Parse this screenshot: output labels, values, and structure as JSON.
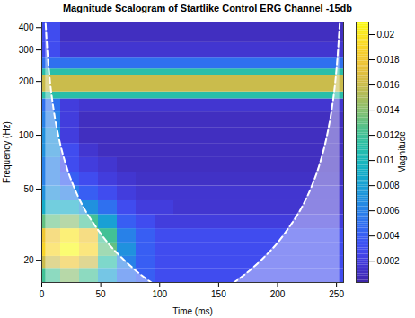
{
  "chart_data": {
    "type": "heatmap",
    "title": "Magnitude Scalogram of Startlike Control ERG Channel -15db",
    "x_label": "Time (ms)",
    "y_label": "Frequency (Hz)",
    "log": "y",
    "xlim": [
      0,
      256
    ],
    "ylim": [
      15,
      430
    ],
    "xticks": [
      0,
      50,
      100,
      150,
      200,
      250
    ],
    "yticks": [
      20,
      50,
      100,
      200,
      300,
      400
    ],
    "x_edges": [
      0,
      16,
      32,
      48,
      64,
      80,
      96,
      112,
      128,
      144,
      160,
      176,
      192,
      208,
      224,
      240,
      256
    ],
    "y_edges": [
      15,
      18,
      21,
      25,
      30,
      36,
      43,
      52,
      62,
      75,
      90,
      110,
      135,
      160,
      175,
      215,
      235,
      270,
      330,
      430
    ],
    "values": [
      [
        0.012,
        0.014,
        0.012,
        0.008,
        0.005,
        0.004,
        0.003,
        0.003,
        0.003,
        0.003,
        0.003,
        0.003,
        0.003,
        0.003,
        0.003,
        0.003
      ],
      [
        0.016,
        0.018,
        0.016,
        0.011,
        0.006,
        0.004,
        0.003,
        0.003,
        0.003,
        0.003,
        0.003,
        0.003,
        0.003,
        0.003,
        0.003,
        0.003
      ],
      [
        0.019,
        0.021,
        0.019,
        0.013,
        0.007,
        0.004,
        0.003,
        0.003,
        0.003,
        0.003,
        0.003,
        0.003,
        0.003,
        0.003,
        0.003,
        0.003
      ],
      [
        0.018,
        0.02,
        0.018,
        0.012,
        0.006,
        0.004,
        0.003,
        0.003,
        0.003,
        0.003,
        0.003,
        0.003,
        0.003,
        0.003,
        0.003,
        0.003
      ],
      [
        0.013,
        0.014,
        0.012,
        0.008,
        0.004,
        0.003,
        0.002,
        0.002,
        0.002,
        0.002,
        0.002,
        0.002,
        0.002,
        0.002,
        0.002,
        0.002
      ],
      [
        0.009,
        0.009,
        0.007,
        0.005,
        0.003,
        0.002,
        0.002,
        0.0015,
        0.0015,
        0.0015,
        0.0015,
        0.0015,
        0.0015,
        0.0015,
        0.0015,
        0.0015
      ],
      [
        0.007,
        0.006,
        0.004,
        0.003,
        0.002,
        0.0015,
        0.0015,
        0.0015,
        0.0015,
        0.0015,
        0.0015,
        0.0015,
        0.0015,
        0.0015,
        0.0015,
        0.0015
      ],
      [
        0.006,
        0.004,
        0.003,
        0.002,
        0.0015,
        0.0012,
        0.0012,
        0.0012,
        0.0012,
        0.0012,
        0.0012,
        0.0012,
        0.0012,
        0.0012,
        0.0012,
        0.0012
      ],
      [
        0.006,
        0.003,
        0.002,
        0.0015,
        0.001,
        0.001,
        0.001,
        0.001,
        0.001,
        0.001,
        0.001,
        0.001,
        0.001,
        0.001,
        0.001,
        0.001
      ],
      [
        0.007,
        0.003,
        0.0015,
        0.001,
        0.001,
        0.001,
        0.001,
        0.001,
        0.001,
        0.001,
        0.001,
        0.001,
        0.001,
        0.001,
        0.001,
        0.001
      ],
      [
        0.007,
        0.002,
        0.001,
        0.001,
        0.001,
        0.001,
        0.001,
        0.001,
        0.001,
        0.001,
        0.001,
        0.001,
        0.001,
        0.001,
        0.001,
        0.001
      ],
      [
        0.006,
        0.002,
        0.001,
        0.001,
        0.001,
        0.001,
        0.001,
        0.001,
        0.001,
        0.001,
        0.001,
        0.001,
        0.001,
        0.001,
        0.001,
        0.001
      ],
      [
        0.005,
        0.002,
        0.0015,
        0.0015,
        0.0015,
        0.0015,
        0.0015,
        0.0015,
        0.0015,
        0.0015,
        0.0015,
        0.0015,
        0.0015,
        0.0015,
        0.0015,
        0.0015
      ],
      [
        0.011,
        0.011,
        0.011,
        0.011,
        0.011,
        0.011,
        0.011,
        0.011,
        0.011,
        0.011,
        0.011,
        0.011,
        0.011,
        0.011,
        0.011,
        0.011
      ],
      [
        0.016,
        0.016,
        0.016,
        0.016,
        0.016,
        0.016,
        0.016,
        0.016,
        0.016,
        0.016,
        0.016,
        0.016,
        0.016,
        0.016,
        0.016,
        0.016
      ],
      [
        0.011,
        0.011,
        0.011,
        0.011,
        0.011,
        0.011,
        0.011,
        0.011,
        0.011,
        0.011,
        0.011,
        0.011,
        0.011,
        0.011,
        0.011,
        0.011
      ],
      [
        0.005,
        0.005,
        0.005,
        0.005,
        0.005,
        0.005,
        0.005,
        0.005,
        0.005,
        0.005,
        0.005,
        0.005,
        0.005,
        0.005,
        0.005,
        0.005
      ],
      [
        0.003,
        0.0015,
        0.0015,
        0.0015,
        0.0015,
        0.0015,
        0.0015,
        0.0015,
        0.0015,
        0.0015,
        0.0015,
        0.0015,
        0.0015,
        0.0015,
        0.0015,
        0.0015
      ],
      [
        0.003,
        0.001,
        0.001,
        0.001,
        0.001,
        0.001,
        0.001,
        0.001,
        0.001,
        0.001,
        0.001,
        0.001,
        0.001,
        0.001,
        0.001,
        0.001
      ]
    ],
    "colorbar": {
      "label": "Magnitude",
      "lim": [
        0.0003,
        0.021
      ],
      "ticks": [
        0.002,
        0.004,
        0.006,
        0.008,
        0.01,
        0.012,
        0.014,
        0.016,
        0.018,
        0.02
      ]
    },
    "coi": {
      "x": [
        3.3,
        4.7,
        7,
        10,
        14,
        20,
        28,
        35,
        47,
        56,
        70,
        82,
        93,
        108,
        128,
        148,
        163,
        174,
        186,
        200,
        209,
        221,
        228,
        236,
        242,
        246,
        249,
        251.3,
        252.7
      ],
      "y": [
        420,
        300,
        200,
        140,
        100,
        70,
        50,
        40,
        30,
        25,
        20,
        17,
        15,
        13,
        11,
        13,
        15,
        17,
        20,
        25,
        30,
        40,
        50,
        70,
        100,
        140,
        200,
        300,
        420
      ],
      "color": "#ffffff",
      "line_style": "dashed"
    }
  }
}
